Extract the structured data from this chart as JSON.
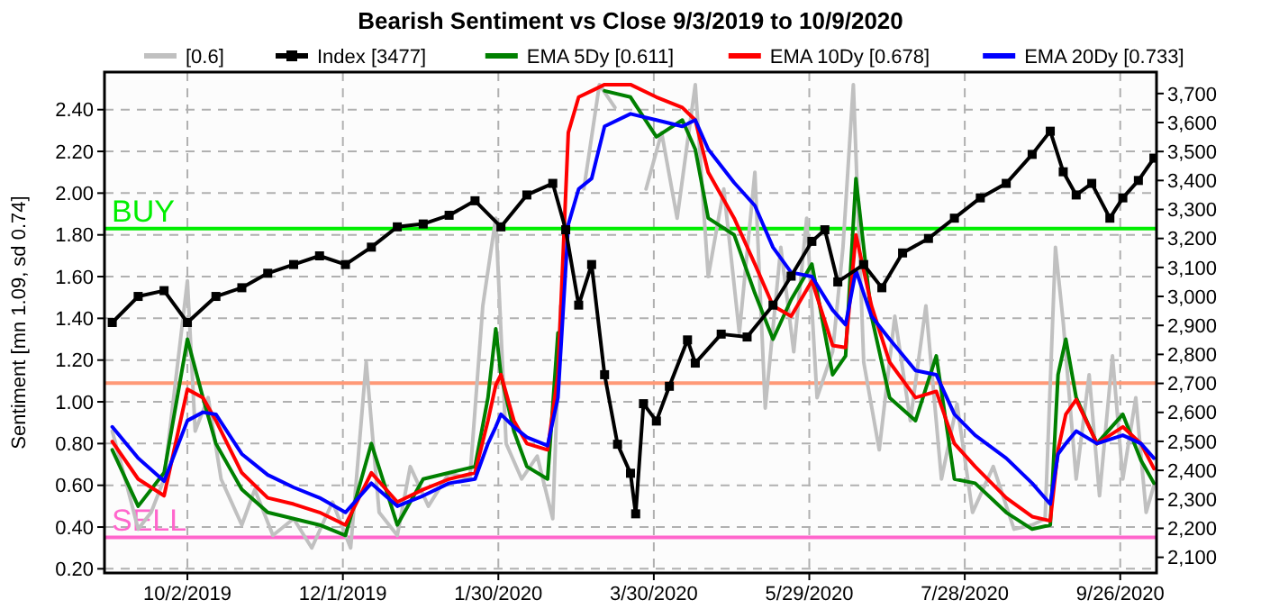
{
  "chart_data": {
    "type": "line",
    "title": "Bearish Sentiment vs Close 9/3/2019 to 10/9/2020",
    "ylabel": "Sentiment [mn 1.09, sd 0.74]",
    "xlim": [
      "2019-08-31",
      "2020-10-10"
    ],
    "xticks": [
      {
        "value": "2019-10-02",
        "label": "10/2/2019"
      },
      {
        "value": "2019-12-01",
        "label": "12/1/2019"
      },
      {
        "value": "2020-01-30",
        "label": "1/30/2020"
      },
      {
        "value": "2020-03-30",
        "label": "3/30/2020"
      },
      {
        "value": "2020-05-29",
        "label": "5/29/2020"
      },
      {
        "value": "2020-07-28",
        "label": "7/28/2020"
      },
      {
        "value": "2020-09-26",
        "label": "9/26/2020"
      }
    ],
    "ylim": [
      0.18,
      2.58
    ],
    "yticks": [
      {
        "value": 0.2,
        "label": "0.20"
      },
      {
        "value": 0.4,
        "label": "0.40"
      },
      {
        "value": 0.6,
        "label": "0.60"
      },
      {
        "value": 0.8,
        "label": "0.80"
      },
      {
        "value": 1.0,
        "label": "1.00"
      },
      {
        "value": 1.2,
        "label": "1.20"
      },
      {
        "value": 1.4,
        "label": "1.40"
      },
      {
        "value": 1.6,
        "label": "1.60"
      },
      {
        "value": 1.8,
        "label": "1.80"
      },
      {
        "value": 2.0,
        "label": "2.00"
      },
      {
        "value": 2.2,
        "label": "2.20"
      },
      {
        "value": 2.4,
        "label": "2.40"
      }
    ],
    "y2lim": [
      2046,
      3774
    ],
    "y2ticks": [
      {
        "value": 2100,
        "label": "2,100"
      },
      {
        "value": 2200,
        "label": "2,200"
      },
      {
        "value": 2300,
        "label": "2,300"
      },
      {
        "value": 2400,
        "label": "2,400"
      },
      {
        "value": 2500,
        "label": "2,500"
      },
      {
        "value": 2600,
        "label": "2,600"
      },
      {
        "value": 2700,
        "label": "2,700"
      },
      {
        "value": 2800,
        "label": "2,800"
      },
      {
        "value": 2900,
        "label": "2,900"
      },
      {
        "value": 3000,
        "label": "3,000"
      },
      {
        "value": 3100,
        "label": "3,100"
      },
      {
        "value": 3200,
        "label": "3,200"
      },
      {
        "value": 3300,
        "label": "3,300"
      },
      {
        "value": 3400,
        "label": "3,400"
      },
      {
        "value": 3500,
        "label": "3,500"
      },
      {
        "value": 3600,
        "label": "3,600"
      },
      {
        "value": 3700,
        "label": "3,700"
      }
    ],
    "grid": true,
    "legend": "top",
    "ref_lines": [
      {
        "axis": "y",
        "value": 1.83,
        "label": "BUY",
        "color": "#00ee00"
      },
      {
        "axis": "y",
        "value": 1.09,
        "color": "#ff9977"
      },
      {
        "axis": "y",
        "value": 0.35,
        "label": "SELL",
        "color": "#ff66cc"
      }
    ],
    "series": [
      {
        "name": "[0.6]",
        "color": "#c0c0c0",
        "x": [
          "2019-09-03",
          "2019-09-08",
          "2019-09-13",
          "2019-09-18",
          "2019-09-23",
          "2019-10-02",
          "2019-10-05",
          "2019-10-10",
          "2019-10-15",
          "2019-10-23",
          "2019-10-28",
          "2019-11-04",
          "2019-11-12",
          "2019-11-19",
          "2019-11-27",
          "2019-12-04",
          "2019-12-10",
          "2019-12-15",
          "2019-12-22",
          "2019-12-27",
          "2020-01-03",
          "2020-01-11",
          "2020-01-19",
          "2020-01-24",
          "2020-01-29",
          "2020-02-02",
          "2020-02-08",
          "2020-02-14",
          "2020-02-20",
          "2020-02-23",
          "2020-02-26",
          "2020-03-03",
          "2020-03-09",
          "2020-03-15",
          "2020-03-21",
          "2020-03-27",
          "2020-04-02",
          "2020-04-08",
          "2020-04-15",
          "2020-04-20",
          "2020-04-26",
          "2020-05-02",
          "2020-05-08",
          "2020-05-12",
          "2020-05-18",
          "2020-05-23",
          "2020-05-28",
          "2020-06-01",
          "2020-06-07",
          "2020-06-11",
          "2020-06-15",
          "2020-06-19",
          "2020-06-25",
          "2020-07-01",
          "2020-07-07",
          "2020-07-13",
          "2020-07-19",
          "2020-07-25",
          "2020-07-31",
          "2020-08-08",
          "2020-08-16",
          "2020-08-23",
          "2020-08-28",
          "2020-09-01",
          "2020-09-04",
          "2020-09-09",
          "2020-09-14",
          "2020-09-18",
          "2020-09-23",
          "2020-09-27",
          "2020-10-02",
          "2020-10-06",
          "2020-10-09"
        ],
        "values": [
          0.86,
          0.63,
          0.39,
          0.47,
          0.63,
          1.58,
          0.86,
          1.02,
          0.63,
          0.41,
          0.58,
          0.36,
          0.44,
          0.3,
          0.52,
          0.3,
          1.19,
          0.47,
          0.36,
          0.69,
          0.5,
          0.66,
          0.63,
          1.46,
          1.88,
          0.8,
          0.63,
          0.74,
          0.44,
          1.46,
          null,
          2.02,
          2.52,
          2.41,
          null,
          2.02,
          2.29,
          1.88,
          2.52,
          1.6,
          2.02,
          1.33,
          2.1,
          0.97,
          1.74,
          1.24,
          1.88,
          1.02,
          1.24,
          1.74,
          2.52,
          1.19,
          0.77,
          1.41,
          0.91,
          1.46,
          0.63,
          0.99,
          0.47,
          0.69,
          0.39,
          0.41,
          0.44,
          1.74,
          1.38,
          0.63,
          1.13,
          0.55,
          1.22,
          0.63,
          1.02,
          0.47,
          0.6
        ]
      },
      {
        "name": "Index [3477]",
        "color": "#000000",
        "axis": "y2",
        "marker": "square",
        "x": [
          "2019-09-03",
          "2019-09-13",
          "2019-09-23",
          "2019-10-02",
          "2019-10-13",
          "2019-10-23",
          "2019-11-02",
          "2019-11-12",
          "2019-11-22",
          "2019-12-02",
          "2019-12-12",
          "2019-12-22",
          "2020-01-01",
          "2020-01-11",
          "2020-01-21",
          "2020-01-31",
          "2020-02-10",
          "2020-02-20",
          "2020-02-25",
          "2020-03-01",
          "2020-03-06",
          "2020-03-11",
          "2020-03-16",
          "2020-03-21",
          "2020-03-23",
          "2020-03-26",
          "2020-03-31",
          "2020-04-05",
          "2020-04-12",
          "2020-04-15",
          "2020-04-25",
          "2020-05-05",
          "2020-05-15",
          "2020-05-22",
          "2020-05-30",
          "2020-06-04",
          "2020-06-09",
          "2020-06-19",
          "2020-06-26",
          "2020-07-04",
          "2020-07-14",
          "2020-07-24",
          "2020-08-03",
          "2020-08-13",
          "2020-08-23",
          "2020-08-30",
          "2020-09-04",
          "2020-09-09",
          "2020-09-15",
          "2020-09-22",
          "2020-09-27",
          "2020-10-03",
          "2020-10-09"
        ],
        "values": [
          2910,
          3000,
          3020,
          2910,
          3000,
          3030,
          3080,
          3110,
          3140,
          3110,
          3170,
          3240,
          3250,
          3280,
          3330,
          3240,
          3350,
          3390,
          3230,
          2970,
          3110,
          2730,
          2490,
          2390,
          2250,
          2630,
          2570,
          2690,
          2850,
          2770,
          2870,
          2860,
          2970,
          3070,
          3190,
          3230,
          3050,
          3110,
          3030,
          3150,
          3200,
          3270,
          3340,
          3390,
          3490,
          3570,
          3430,
          3350,
          3390,
          3270,
          3340,
          3400,
          3477
        ]
      },
      {
        "name": "EMA 5Dy [0.611]",
        "color": "#008000",
        "x": [
          "2019-09-03",
          "2019-09-13",
          "2019-09-23",
          "2019-10-02",
          "2019-10-08",
          "2019-10-13",
          "2019-10-23",
          "2019-11-02",
          "2019-11-12",
          "2019-11-22",
          "2019-12-02",
          "2019-12-12",
          "2019-12-22",
          "2020-01-01",
          "2020-01-11",
          "2020-01-21",
          "2020-01-26",
          "2020-01-29",
          "2020-01-31",
          "2020-02-05",
          "2020-02-10",
          "2020-02-18",
          "2020-02-22",
          "2020-02-26",
          "2020-03-01",
          "2020-03-06",
          "2020-03-11",
          "2020-03-21",
          "2020-03-31",
          "2020-04-10",
          "2020-04-15",
          "2020-04-20",
          "2020-04-30",
          "2020-05-08",
          "2020-05-15",
          "2020-05-22",
          "2020-05-30",
          "2020-06-07",
          "2020-06-12",
          "2020-06-16",
          "2020-06-22",
          "2020-06-29",
          "2020-07-09",
          "2020-07-17",
          "2020-07-24",
          "2020-08-01",
          "2020-08-13",
          "2020-08-23",
          "2020-08-30",
          "2020-09-02",
          "2020-09-05",
          "2020-09-09",
          "2020-09-17",
          "2020-09-27",
          "2020-10-04",
          "2020-10-09"
        ],
        "values": [
          0.77,
          0.5,
          0.66,
          1.3,
          1.02,
          0.8,
          0.58,
          0.47,
          0.44,
          0.41,
          0.36,
          0.8,
          0.41,
          0.63,
          0.66,
          0.69,
          1.02,
          1.35,
          1.13,
          0.86,
          0.69,
          0.63,
          1.33,
          null,
          null,
          null,
          2.49,
          2.46,
          2.27,
          2.35,
          2.21,
          1.88,
          1.8,
          1.52,
          1.3,
          1.49,
          1.66,
          1.13,
          1.22,
          2.07,
          1.41,
          1.02,
          0.91,
          1.22,
          0.63,
          0.61,
          0.47,
          0.39,
          0.41,
          1.13,
          1.3,
          1.02,
          0.8,
          0.94,
          0.72,
          0.61
        ]
      },
      {
        "name": "EMA 10Dy [0.678]",
        "color": "#ff0000",
        "x": [
          "2019-09-03",
          "2019-09-13",
          "2019-09-23",
          "2019-10-02",
          "2019-10-08",
          "2019-10-13",
          "2019-10-23",
          "2019-11-02",
          "2019-11-12",
          "2019-11-22",
          "2019-12-02",
          "2019-12-12",
          "2019-12-22",
          "2020-01-01",
          "2020-01-11",
          "2020-01-21",
          "2020-01-26",
          "2020-01-29",
          "2020-01-31",
          "2020-02-05",
          "2020-02-10",
          "2020-02-18",
          "2020-02-22",
          "2020-02-26",
          "2020-03-01",
          "2020-03-06",
          "2020-03-11",
          "2020-03-21",
          "2020-03-31",
          "2020-04-10",
          "2020-04-15",
          "2020-04-20",
          "2020-04-30",
          "2020-05-08",
          "2020-05-15",
          "2020-05-22",
          "2020-05-30",
          "2020-06-07",
          "2020-06-12",
          "2020-06-16",
          "2020-06-22",
          "2020-06-29",
          "2020-07-09",
          "2020-07-17",
          "2020-07-24",
          "2020-08-01",
          "2020-08-13",
          "2020-08-23",
          "2020-08-30",
          "2020-09-02",
          "2020-09-05",
          "2020-09-09",
          "2020-09-17",
          "2020-09-27",
          "2020-10-04",
          "2020-10-09"
        ],
        "values": [
          0.81,
          0.63,
          0.55,
          1.06,
          1.02,
          0.91,
          0.66,
          0.54,
          0.51,
          0.47,
          0.41,
          0.66,
          0.52,
          0.58,
          0.63,
          0.66,
          0.91,
          1.08,
          1.13,
          0.91,
          0.8,
          0.77,
          1.13,
          2.29,
          2.46,
          2.49,
          2.52,
          2.52,
          2.46,
          2.41,
          2.35,
          2.1,
          1.88,
          1.66,
          1.46,
          1.41,
          1.58,
          1.27,
          1.26,
          1.8,
          1.46,
          1.19,
          1.02,
          1.05,
          0.8,
          0.69,
          0.54,
          0.45,
          0.43,
          0.77,
          0.94,
          1.01,
          0.8,
          0.88,
          0.8,
          0.68
        ]
      },
      {
        "name": "EMA 20Dy [0.733]",
        "color": "#0000ff",
        "x": [
          "2019-09-03",
          "2019-09-13",
          "2019-09-23",
          "2019-10-02",
          "2019-10-08",
          "2019-10-13",
          "2019-10-23",
          "2019-11-02",
          "2019-11-12",
          "2019-11-22",
          "2019-12-02",
          "2019-12-12",
          "2019-12-22",
          "2020-01-01",
          "2020-01-11",
          "2020-01-21",
          "2020-01-26",
          "2020-01-29",
          "2020-01-31",
          "2020-02-05",
          "2020-02-10",
          "2020-02-18",
          "2020-02-22",
          "2020-02-26",
          "2020-03-01",
          "2020-03-06",
          "2020-03-11",
          "2020-03-21",
          "2020-03-31",
          "2020-04-10",
          "2020-04-15",
          "2020-04-20",
          "2020-04-30",
          "2020-05-08",
          "2020-05-15",
          "2020-05-22",
          "2020-05-30",
          "2020-06-07",
          "2020-06-12",
          "2020-06-16",
          "2020-06-22",
          "2020-06-29",
          "2020-07-09",
          "2020-07-17",
          "2020-07-24",
          "2020-08-01",
          "2020-08-13",
          "2020-08-23",
          "2020-08-30",
          "2020-09-02",
          "2020-09-05",
          "2020-09-09",
          "2020-09-17",
          "2020-09-27",
          "2020-10-04",
          "2020-10-09"
        ],
        "values": [
          0.88,
          0.73,
          0.62,
          0.91,
          0.95,
          0.94,
          0.75,
          0.65,
          0.59,
          0.54,
          0.47,
          0.61,
          0.5,
          0.55,
          0.61,
          0.63,
          0.8,
          0.88,
          0.94,
          0.88,
          0.83,
          0.79,
          1.02,
          1.85,
          2.02,
          2.07,
          2.32,
          2.38,
          2.35,
          2.32,
          2.35,
          2.21,
          2.05,
          1.94,
          1.74,
          1.62,
          1.6,
          1.44,
          1.37,
          1.63,
          1.41,
          1.3,
          1.15,
          1.13,
          0.94,
          0.84,
          0.73,
          0.61,
          0.51,
          0.75,
          0.8,
          0.86,
          0.8,
          0.84,
          0.8,
          0.73
        ]
      }
    ]
  }
}
